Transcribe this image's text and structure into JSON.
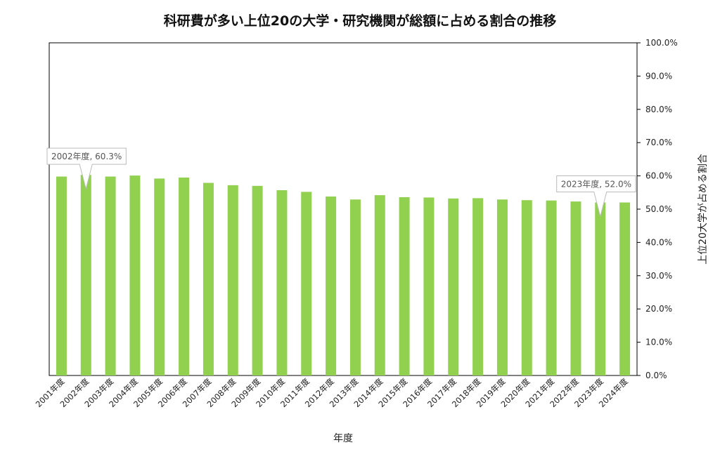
{
  "chart_data": {
    "type": "bar",
    "title": "科研費が多い上位20の大学・研究機関が総額に占める割合の推移",
    "xlabel": "年度",
    "ylabel": "上位20大学が占める割合",
    "categories": [
      "2001年度",
      "2002年度",
      "2003年度",
      "2004年度",
      "2005年度",
      "2006年度",
      "2007年度",
      "2008年度",
      "2009年度",
      "2010年度",
      "2011年度",
      "2012年度",
      "2013年度",
      "2014年度",
      "2015年度",
      "2016年度",
      "2017年度",
      "2018年度",
      "2019年度",
      "2020年度",
      "2021年度",
      "2022年度",
      "2023年度",
      "2024年度"
    ],
    "values": [
      59.8,
      60.3,
      59.8,
      60.1,
      59.2,
      59.5,
      57.9,
      57.2,
      57.0,
      55.7,
      55.2,
      53.8,
      52.9,
      54.2,
      53.6,
      53.5,
      53.2,
      53.3,
      52.9,
      52.7,
      52.6,
      52.3,
      52.0,
      52.0
    ],
    "ylim": [
      0,
      100
    ],
    "yticks": [
      "0.0%",
      "10.0%",
      "20.0%",
      "30.0%",
      "40.0%",
      "50.0%",
      "60.0%",
      "70.0%",
      "80.0%",
      "90.0%",
      "100.0%"
    ],
    "bar_color": "#92d050",
    "grid": false,
    "legend": "none",
    "annotations": [
      {
        "category_index": 1,
        "text": "2002年度, 60.3%"
      },
      {
        "category_index": 22,
        "text": "2023年度, 52.0%"
      }
    ]
  }
}
